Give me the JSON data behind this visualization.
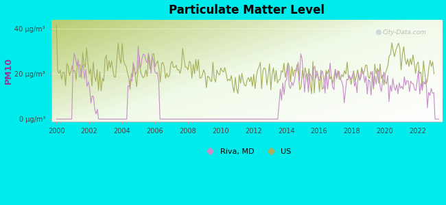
{
  "title": "Particulate Matter Level",
  "ylabel": "PM10",
  "background_outer": "#00ECEC",
  "background_inner_color1": "#c8d888",
  "background_inner_color2": "#eef8e8",
  "ytick_labels": [
    "0 μg/m³",
    "20 μg/m³",
    "40 μg/m³"
  ],
  "ytick_vals": [
    0,
    20,
    40
  ],
  "xlim": [
    1999.7,
    2023.5
  ],
  "ylim": [
    -1,
    44
  ],
  "xticks": [
    2000,
    2002,
    2004,
    2006,
    2008,
    2010,
    2012,
    2014,
    2016,
    2018,
    2020,
    2022
  ],
  "color_riva": "#c890c8",
  "color_us": "#a8b060",
  "legend_label_riva": "Riva, MD",
  "legend_label_us": "US",
  "watermark": "City-Data.com"
}
